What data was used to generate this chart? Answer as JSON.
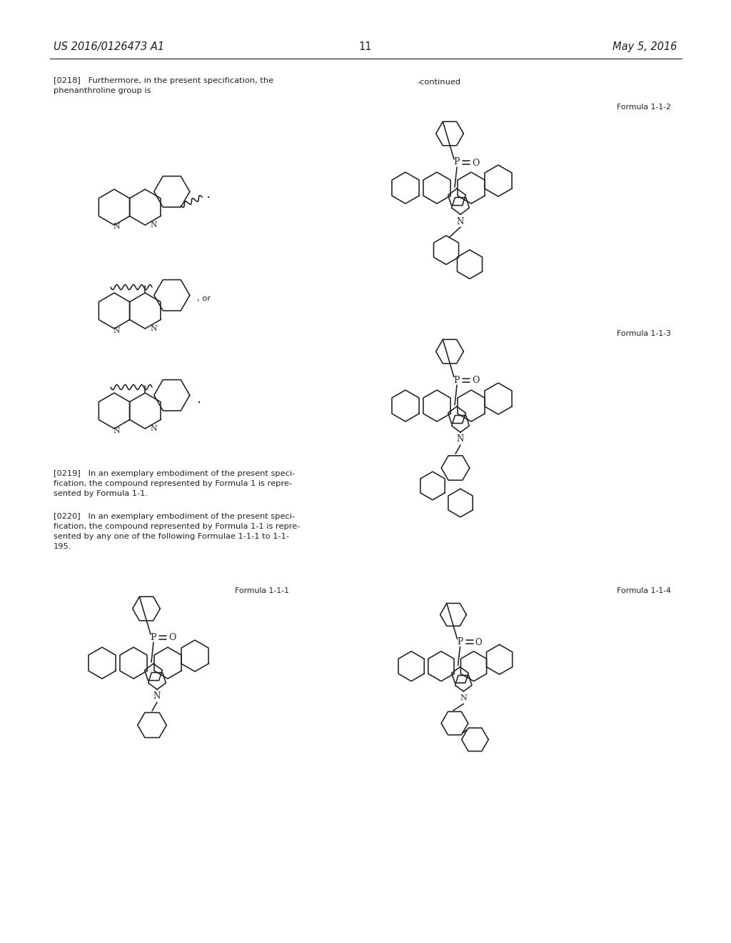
{
  "page_header_left": "US 2016/0126473 A1",
  "page_header_right": "May 5, 2016",
  "page_number": "11",
  "background_color": "#ffffff",
  "text_color": "#231f20",
  "font_size_header": 10.5,
  "font_size_body": 8.2,
  "font_size_label": 7.8,
  "paragraph_0218_line1": "[0218]   Furthermore, in the present specification, the",
  "paragraph_0218_line2": "phenanthroline group is",
  "paragraph_0219_line1": "[0219]   In an exemplary embodiment of the present speci-",
  "paragraph_0219_line2": "fication, the compound represented by Formula 1 is repre-",
  "paragraph_0219_line3": "sented by Formula 1-1.",
  "paragraph_0220_line1": "[0220]   In an exemplary embodiment of the present speci-",
  "paragraph_0220_line2": "fication, the compound represented by Formula 1-1 is repre-",
  "paragraph_0220_line3": "sented by any one of the following Formulae 1-1-1 to 1-1-",
  "paragraph_0220_line4": "195.",
  "continued_label": "-continued",
  "formula_label_111": "Formula 1-1-1",
  "formula_label_112": "Formula 1-1-2",
  "formula_label_113": "Formula 1-1-3",
  "formula_label_114": "Formula 1-1-4",
  "or_text": ", or"
}
